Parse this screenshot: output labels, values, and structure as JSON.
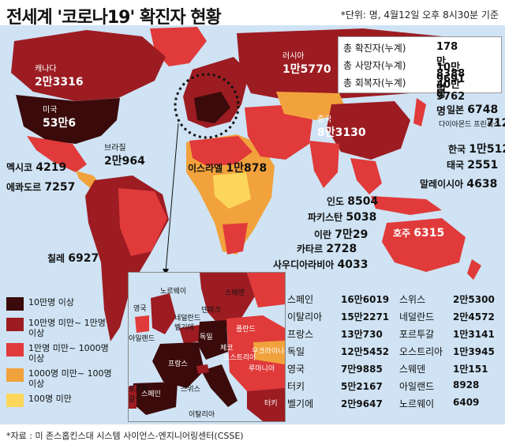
{
  "title": "전세계 '코로나19' 확진자 현황",
  "unit_note": "*단위: 명, 4월12일 오후 8시30분 기준",
  "summary": [
    {
      "label": "총 확진자(누계)",
      "value": "178만8388명"
    },
    {
      "label": "총 사망자(누계)",
      "value": "10만9691명"
    },
    {
      "label": "총 회복자(누계)",
      "value": "40만9762명"
    }
  ],
  "countries": {
    "canada": {
      "name": "캐나다",
      "value": "2만3316"
    },
    "usa": {
      "name": "미국",
      "value": "53만6"
    },
    "russia": {
      "name": "러시아",
      "value": "1만5770"
    },
    "mexico": {
      "name": "멕시코",
      "value": "4219"
    },
    "ecuador": {
      "name": "에콰도르",
      "value": "7257"
    },
    "brazil": {
      "name": "브라질",
      "value": "2만964"
    },
    "chile": {
      "name": "칠레",
      "value": "6927"
    },
    "israel": {
      "name": "이스라엘",
      "value": "1만878"
    },
    "china": {
      "name": "중국",
      "value": "8만3130"
    },
    "japan": {
      "name": "일본",
      "value": "6748"
    },
    "diamond": {
      "name": "다이아몬드 프린세스",
      "value": "712"
    },
    "korea": {
      "name": "한국",
      "value": "1만512"
    },
    "thailand": {
      "name": "태국",
      "value": "2551"
    },
    "malaysia": {
      "name": "말레이시아",
      "value": "4638"
    },
    "australia": {
      "name": "호주",
      "value": "6315"
    },
    "india": {
      "name": "인도",
      "value": "8504"
    },
    "pakistan": {
      "name": "파키스탄",
      "value": "5038"
    },
    "iran": {
      "name": "이란",
      "value": "7만29"
    },
    "qatar": {
      "name": "카타르",
      "value": "2728"
    },
    "saudi": {
      "name": "사우디아라비아",
      "value": "4033"
    }
  },
  "legend": [
    {
      "label": "10만명 이상",
      "color": "#3b0a0a"
    },
    {
      "label": "10만명 미만~ 1만명 이상",
      "color": "#9c1c22"
    },
    {
      "label": "1만명 미만~ 1000명 이상",
      "color": "#e03a3a"
    },
    {
      "label": "1000명 미만~ 100명 이상",
      "color": "#f2a23c"
    },
    {
      "label": "100명 미만",
      "color": "#fcd65a"
    }
  ],
  "inset_labels": [
    "노르웨이",
    "스웨덴",
    "영국",
    "덴마크",
    "아일랜드",
    "네덜란드",
    "벨기에",
    "독일",
    "폴란드",
    "체코",
    "오스트리아",
    "우크라이나",
    "루마니아",
    "프랑스",
    "스위스",
    "포르투갈",
    "스페인",
    "이탈리아",
    "터키"
  ],
  "europe_table": [
    {
      "name": "스페인",
      "value": "16만6019"
    },
    {
      "name": "스위스",
      "value": "2만5300"
    },
    {
      "name": "이탈리아",
      "value": "15만2271"
    },
    {
      "name": "네덜란드",
      "value": "2만4572"
    },
    {
      "name": "프랑스",
      "value": "13만730"
    },
    {
      "name": "포르투갈",
      "value": "1만3141"
    },
    {
      "name": "독일",
      "value": "12만5452"
    },
    {
      "name": "오스트리아",
      "value": "1만3945"
    },
    {
      "name": "영국",
      "value": "7만9885"
    },
    {
      "name": "스웨덴",
      "value": "1만151"
    },
    {
      "name": "터키",
      "value": "5만2167"
    },
    {
      "name": "아일랜드",
      "value": "8928"
    },
    {
      "name": "벨기에",
      "value": "2만9647"
    },
    {
      "name": "노르웨이",
      "value": "6409"
    }
  ],
  "source": "*자료 : 미 존스홉킨스대 시스템 사이언스-엔지니어링센터(CSSE)"
}
